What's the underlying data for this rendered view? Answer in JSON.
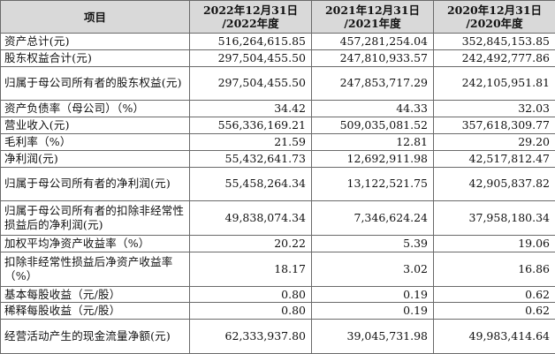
{
  "table": {
    "headers": [
      {
        "line1": "项目",
        "line2": ""
      },
      {
        "line1": "2022年12月31日",
        "line2": "/2022年度"
      },
      {
        "line1": "2021年12月31日",
        "line2": "/2021年度"
      },
      {
        "line1": "2020年12月31日",
        "line2": "/2020年度"
      }
    ],
    "rows": [
      {
        "label": "资产总计(元)",
        "v2022": "516,264,615.85",
        "v2021": "457,281,254.04",
        "v2020": "352,845,153.85"
      },
      {
        "label": "股东权益合计(元)",
        "v2022": "297,504,455.50",
        "v2021": "247,810,933.57",
        "v2020": "242,492,777.86"
      },
      {
        "label": "归属于母公司所有者的股东权益(元)",
        "v2022": "297,504,455.50",
        "v2021": "247,853,717.29",
        "v2020": "242,105,951.81"
      },
      {
        "label": "资产负债率（母公司）（%）",
        "v2022": "34.42",
        "v2021": "44.33",
        "v2020": "32.03"
      },
      {
        "label": "营业收入(元)",
        "v2022": "556,336,169.21",
        "v2021": "509,035,081.52",
        "v2020": "357,618,309.77"
      },
      {
        "label": "毛利率（%）",
        "v2022": "21.59",
        "v2021": "12.81",
        "v2020": "29.20"
      },
      {
        "label": "净利润(元)",
        "v2022": "55,432,641.73",
        "v2021": "12,692,911.98",
        "v2020": "42,517,812.47"
      },
      {
        "label": "归属于母公司所有者的净利润(元)",
        "v2022": "55,458,264.34",
        "v2021": "13,122,521.75",
        "v2020": "42,905,837.82"
      },
      {
        "label": "归属于母公司所有者的扣除非经常性损益后的净利润(元)",
        "v2022": "49,838,074.34",
        "v2021": "7,346,624.24",
        "v2020": "37,958,180.34"
      },
      {
        "label": "加权平均净资产收益率（%）",
        "v2022": "20.22",
        "v2021": "5.39",
        "v2020": "19.06"
      },
      {
        "label": "扣除非经常性损益后净资产收益率（%）",
        "v2022": "18.17",
        "v2021": "3.02",
        "v2020": "16.86"
      },
      {
        "label": "基本每股收益（元/股）",
        "v2022": "0.80",
        "v2021": "0.19",
        "v2020": "0.62"
      },
      {
        "label": "稀释每股收益（元/股）",
        "v2022": "0.80",
        "v2021": "0.19",
        "v2020": "0.62"
      },
      {
        "label": "经营活动产生的现金流量净额(元)",
        "v2022": "62,333,937.80",
        "v2021": "39,045,731.98",
        "v2020": "49,983,414.64"
      }
    ]
  }
}
